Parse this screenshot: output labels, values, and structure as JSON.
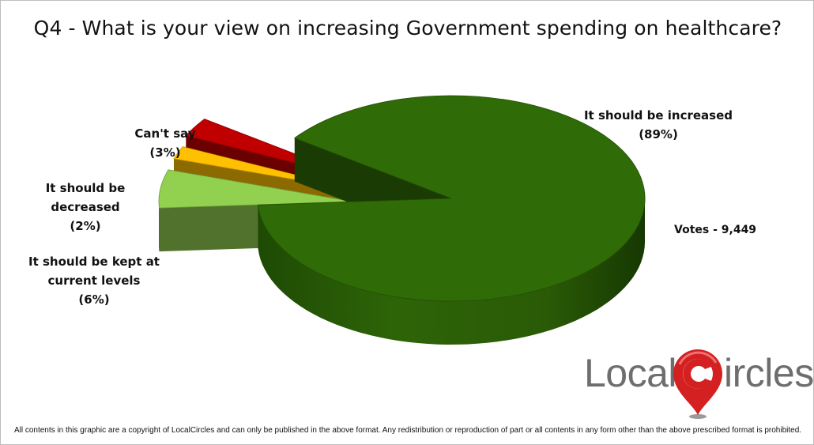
{
  "chart_data": {
    "type": "pie",
    "title": "Q4 - What is your view on increasing Government spending on healthcare?",
    "slices": [
      {
        "label": "It should be increased",
        "pct_label": "(89%)",
        "value": 89,
        "color": "#2f6b06"
      },
      {
        "label": "It should be kept at current levels",
        "pct_label": "(6%)",
        "value": 6,
        "color": "#92d050"
      },
      {
        "label": "It should be decreased",
        "pct_label": "(2%)",
        "value": 2,
        "color": "#ffc000"
      },
      {
        "label": "Can't say",
        "pct_label": "(3%)",
        "value": 3,
        "color": "#c00000"
      }
    ],
    "style": "3d-exploded"
  },
  "labels": {
    "increased": [
      "It should be increased",
      "(89%)"
    ],
    "kept": [
      "It should be kept at",
      "current levels",
      "(6%)"
    ],
    "decreased": [
      "It should be",
      "decreased",
      "(2%)"
    ],
    "cantsay": [
      "Can't say",
      "(3%)"
    ]
  },
  "votes": "Votes - 9,449",
  "logo": {
    "part1": "Local",
    "part2": "ircles",
    "pin_color": "#d42020"
  },
  "footer": "All contents in this graphic are a copyright of LocalCircles and can only be published in the above format. Any redistribution or reproduction of part or all contents in any form other than the above prescribed format is prohibited."
}
